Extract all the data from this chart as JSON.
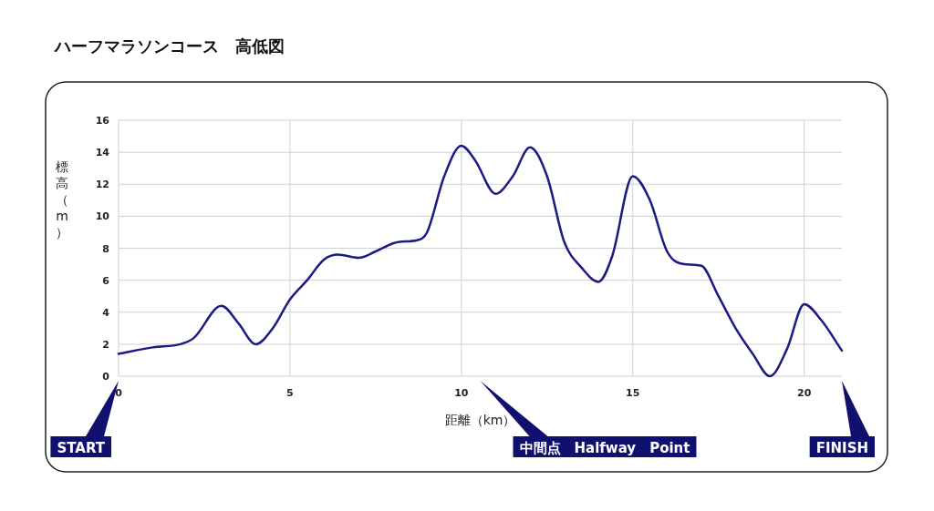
{
  "chart_data": {
    "type": "line",
    "title": "ハーフマラソンコース　高低図",
    "xlabel": "距離（km）",
    "ylabel": "標高（m）",
    "series": [
      {
        "color": "#1b1b84",
        "x": [
          0,
          1,
          1.8,
          2.2,
          3,
          3.5,
          4,
          4.5,
          5,
          5.5,
          6,
          6.4,
          7,
          7.5,
          8,
          8.2,
          8.7,
          9,
          9.5,
          10,
          10.4,
          11,
          11.5,
          12,
          12.5,
          13,
          13.5,
          14,
          14.4,
          15,
          15.5,
          16,
          16.5,
          17,
          17.5,
          18,
          18.5,
          19,
          19.5,
          20,
          20.5,
          21.1
        ],
        "values": [
          1.4,
          1.8,
          2.0,
          2.4,
          4.4,
          3.3,
          2.0,
          3.0,
          4.8,
          6.0,
          7.3,
          7.6,
          7.4,
          7.8,
          8.3,
          8.4,
          8.5,
          9.0,
          12.5,
          14.4,
          13.5,
          11.4,
          12.5,
          14.3,
          12.5,
          8.4,
          6.8,
          5.9,
          7.5,
          12.5,
          11.0,
          7.8,
          7.0,
          6.9,
          5.0,
          3.0,
          1.4,
          0.0,
          1.7,
          4.5,
          3.5,
          1.6
        ]
      }
    ],
    "xlim": [
      0,
      21.1
    ],
    "xticks": [
      0,
      5,
      10,
      15,
      20
    ],
    "ylim": [
      0,
      16
    ],
    "yticks": [
      0,
      2,
      4,
      6,
      8,
      10,
      12,
      14,
      16
    ],
    "grid": true,
    "marker": "none",
    "line_style": "solid",
    "annotations": [
      "START",
      "中間点　Halfway　Point",
      "FINISH"
    ]
  }
}
